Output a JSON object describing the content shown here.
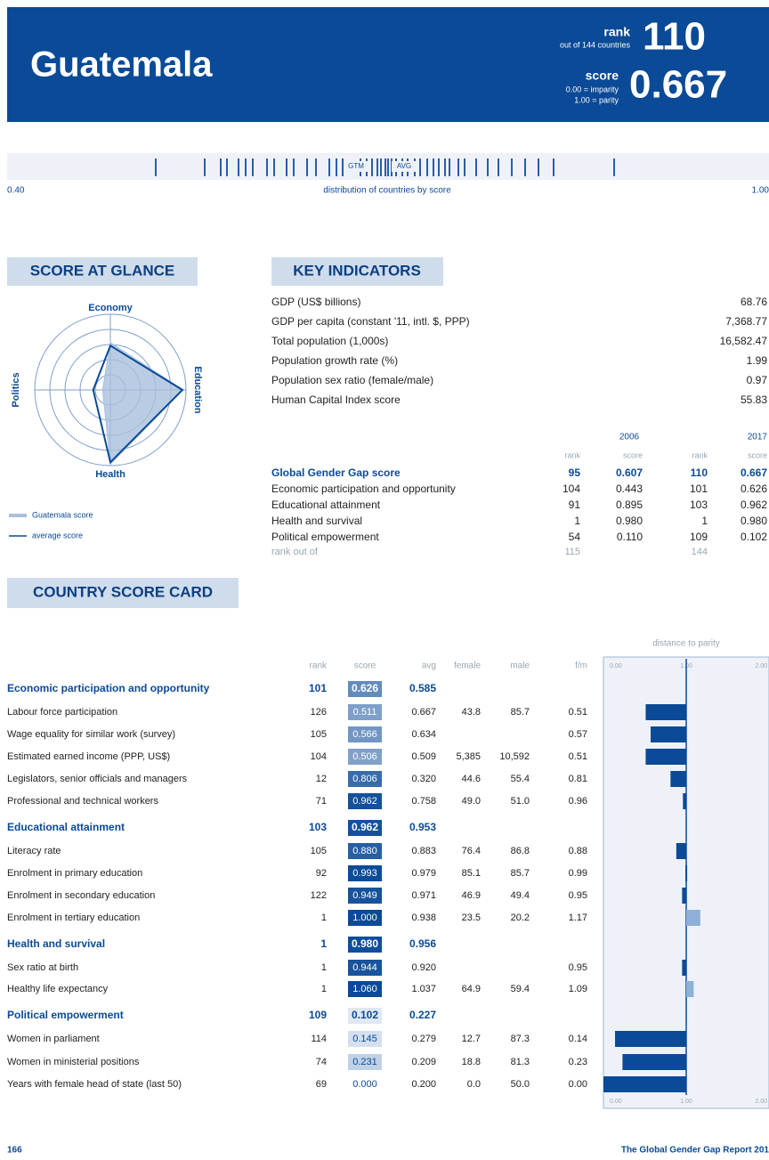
{
  "header": {
    "title": "Guatemala",
    "rank_label": "rank",
    "rank_sub": "out of 144 countries",
    "rank": "110",
    "score_label": "score",
    "score_sub1": "0.00 = imparity",
    "score_sub2": "1.00 = parity",
    "score": "0.667"
  },
  "distribution": {
    "left": "0.40",
    "caption": "distribution of countries by score",
    "right": "1.00",
    "country_marker": "GTM",
    "average_marker": "AVG"
  },
  "glance": {
    "title": "SCORE AT GLANCE",
    "axes": [
      "Economy",
      "Education",
      "Health",
      "Politics"
    ],
    "legend": [
      "Guatemala score",
      "average score"
    ]
  },
  "key_indicators": {
    "title": "KEY INDICATORS",
    "rows": [
      {
        "label": "GDP (US$ billions)",
        "value": "68.76"
      },
      {
        "label": "GDP per capita (constant '11, intl. $, PPP)",
        "value": "7,368.77"
      },
      {
        "label": "Total population (1,000s)",
        "value": "16,582.47"
      },
      {
        "label": "Population growth rate (%)",
        "value": "1.99"
      },
      {
        "label": "Population sex ratio (female/male)",
        "value": "0.97"
      },
      {
        "label": "Human Capital Index score",
        "value": "55.83"
      }
    ]
  },
  "gap_table": {
    "years": [
      "2006",
      "2017"
    ],
    "columns": [
      "rank",
      "score",
      "rank",
      "score"
    ],
    "rows": [
      {
        "name": "Global Gender Gap score",
        "values": [
          "95",
          "0.607",
          "110",
          "0.667"
        ]
      },
      {
        "name": "Economic participation and opportunity",
        "values": [
          "104",
          "0.443",
          "101",
          "0.626"
        ]
      },
      {
        "name": "Educational attainment",
        "values": [
          "91",
          "0.895",
          "103",
          "0.962"
        ]
      },
      {
        "name": "Health and survival",
        "values": [
          "1",
          "0.980",
          "1",
          "0.980"
        ]
      },
      {
        "name": "Political empowerment",
        "values": [
          "54",
          "0.110",
          "109",
          "0.102"
        ]
      }
    ],
    "rank_out_of": {
      "label": "rank out of",
      "values": [
        "115",
        "144"
      ]
    }
  },
  "score_card": {
    "title": "COUNTRY SCORE CARD",
    "chart_title": "distance to parity",
    "columns": [
      "rank",
      "score",
      "avg",
      "female",
      "male",
      "f/m"
    ],
    "axis_ticks": [
      "0.00",
      "1.00",
      "2.00"
    ],
    "rows": [
      {
        "name": "Economic participation and opportunity",
        "category": true,
        "rank": "101",
        "score": "0.626",
        "avg": "0.585"
      },
      {
        "name": "Labour force participation",
        "rank": "126",
        "score": "0.511",
        "avg": "0.667",
        "female": "43.8",
        "male": "85.7",
        "fm": "0.51"
      },
      {
        "name": "Wage equality for similar work (survey)",
        "rank": "105",
        "score": "0.566",
        "avg": "0.634",
        "female": null,
        "male": null,
        "fm": "0.57"
      },
      {
        "name": "Estimated earned income (PPP, US$)",
        "rank": "104",
        "score": "0.506",
        "avg": "0.509",
        "female": "5,385",
        "male": "10,592",
        "fm": "0.51"
      },
      {
        "name": "Legislators, senior officials and managers",
        "rank": "12",
        "score": "0.806",
        "avg": "0.320",
        "female": "44.6",
        "male": "55.4",
        "fm": "0.81"
      },
      {
        "name": "Professional and technical workers",
        "rank": "71",
        "score": "0.962",
        "avg": "0.758",
        "female": "49.0",
        "male": "51.0",
        "fm": "0.96"
      },
      {
        "name": "Educational attainment",
        "category": true,
        "rank": "103",
        "score": "0.962",
        "avg": "0.953"
      },
      {
        "name": "Literacy rate",
        "rank": "105",
        "score": "0.880",
        "avg": "0.883",
        "female": "76.4",
        "male": "86.8",
        "fm": "0.88"
      },
      {
        "name": "Enrolment in primary education",
        "rank": "92",
        "score": "0.993",
        "avg": "0.979",
        "female": "85.1",
        "male": "85.7",
        "fm": "0.99"
      },
      {
        "name": "Enrolment in secondary education",
        "rank": "122",
        "score": "0.949",
        "avg": "0.971",
        "female": "46.9",
        "male": "49.4",
        "fm": "0.95"
      },
      {
        "name": "Enrolment in tertiary education",
        "rank": "1",
        "score": "1.000",
        "avg": "0.938",
        "female": "23.5",
        "male": "20.2",
        "fm": "1.17"
      },
      {
        "name": "Health and survival",
        "category": true,
        "rank": "1",
        "score": "0.980",
        "avg": "0.956"
      },
      {
        "name": "Sex ratio at birth",
        "rank": "1",
        "score": "0.944",
        "avg": "0.920",
        "female": null,
        "male": null,
        "fm": "0.95"
      },
      {
        "name": "Healthy life expectancy",
        "rank": "1",
        "score": "1.060",
        "avg": "1.037",
        "female": "64.9",
        "male": "59.4",
        "fm": "1.09"
      },
      {
        "name": "Political empowerment",
        "category": true,
        "rank": "109",
        "score": "0.102",
        "avg": "0.227"
      },
      {
        "name": "Women in parliament",
        "rank": "114",
        "score": "0.145",
        "avg": "0.279",
        "female": "12.7",
        "male": "87.3",
        "fm": "0.14"
      },
      {
        "name": "Women in ministerial positions",
        "rank": "74",
        "score": "0.231",
        "avg": "0.209",
        "female": "18.8",
        "male": "81.3",
        "fm": "0.23"
      },
      {
        "name": "Years with female head of state (last 50)",
        "rank": "69",
        "score": "0.000",
        "avg": "0.200",
        "female": "0.0",
        "male": "50.0",
        "fm": "0.00"
      }
    ]
  },
  "footer": {
    "page": "166",
    "report": "The Global Gender Gap Report 201"
  }
}
